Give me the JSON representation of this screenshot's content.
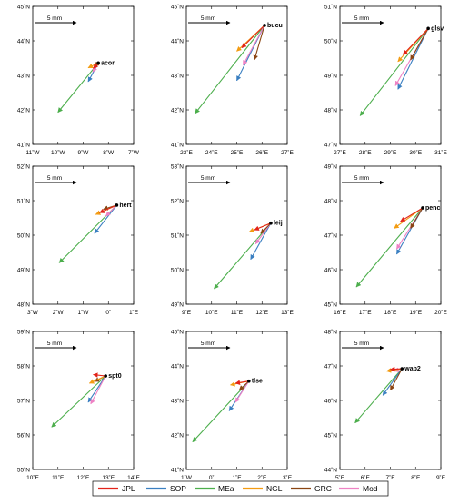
{
  "legend": [
    {
      "name": "JPL",
      "color": "#e2231a"
    },
    {
      "name": "SOP",
      "color": "#3a7fc1"
    },
    {
      "name": "MEa",
      "color": "#4cae4c"
    },
    {
      "name": "NGL",
      "color": "#f39c12"
    },
    {
      "name": "GRC",
      "color": "#8b4513"
    },
    {
      "name": "Mod",
      "color": "#ee82c4"
    }
  ],
  "chart_data": [
    {
      "type": "vector",
      "station": "acor",
      "scale_label": "5 mm",
      "x_ticks": [
        "11˚W",
        "10˚W",
        "9˚W",
        "8˚W",
        "7˚W"
      ],
      "y_ticks": [
        "41˚N",
        "42˚N",
        "43˚N",
        "44˚N",
        "45˚N"
      ],
      "xlim": [
        -11,
        -7
      ],
      "ylim": [
        41,
        45
      ],
      "origin": [
        -8.4,
        43.36
      ],
      "vectors": [
        {
          "series": "MEa",
          "lon": -10.0,
          "lat": 41.93
        },
        {
          "series": "SOP",
          "lon": -8.8,
          "lat": 42.82
        },
        {
          "series": "JPL",
          "lon": -8.6,
          "lat": 43.2
        },
        {
          "series": "NGL",
          "lon": -8.8,
          "lat": 43.22
        },
        {
          "series": "GRC",
          "lon": -8.55,
          "lat": 43.26
        },
        {
          "series": "Mod",
          "lon": -8.62,
          "lat": 43.1
        }
      ]
    },
    {
      "type": "vector",
      "station": "bucu",
      "scale_label": "5 mm",
      "x_ticks": [
        "23˚E",
        "24˚E",
        "25˚E",
        "26˚E",
        "27˚E"
      ],
      "y_ticks": [
        "41˚N",
        "42˚N",
        "43˚N",
        "44˚N",
        "45˚N"
      ],
      "xlim": [
        23,
        27
      ],
      "ylim": [
        41,
        45
      ],
      "origin": [
        26.1,
        44.45
      ],
      "vectors": [
        {
          "series": "MEa",
          "lon": 23.35,
          "lat": 41.9
        },
        {
          "series": "SOP",
          "lon": 25.0,
          "lat": 42.85
        },
        {
          "series": "JPL",
          "lon": 25.2,
          "lat": 43.8
        },
        {
          "series": "NGL",
          "lon": 25.0,
          "lat": 43.7
        },
        {
          "series": "GRC",
          "lon": 25.7,
          "lat": 43.45
        },
        {
          "series": "Mod",
          "lon": 25.25,
          "lat": 43.3
        }
      ]
    },
    {
      "type": "vector",
      "station": "glsv",
      "scale_label": "5 mm",
      "x_ticks": [
        "27˚E",
        "28˚E",
        "29˚E",
        "30˚E",
        "31˚E"
      ],
      "y_ticks": [
        "47˚N",
        "48˚N",
        "49˚N",
        "50˚N",
        "51˚N"
      ],
      "xlim": [
        27,
        31
      ],
      "ylim": [
        47,
        51
      ],
      "origin": [
        30.5,
        50.36
      ],
      "vectors": [
        {
          "series": "MEa",
          "lon": 27.8,
          "lat": 47.83
        },
        {
          "series": "SOP",
          "lon": 29.3,
          "lat": 48.6
        },
        {
          "series": "JPL",
          "lon": 29.5,
          "lat": 49.6
        },
        {
          "series": "NGL",
          "lon": 29.3,
          "lat": 49.4
        },
        {
          "series": "GRC",
          "lon": 29.8,
          "lat": 49.45
        },
        {
          "series": "Mod",
          "lon": 29.2,
          "lat": 48.7
        }
      ]
    },
    {
      "type": "vector",
      "station": "hert",
      "scale_label": "5 mm",
      "x_ticks": [
        "3˚W",
        "2˚W",
        "1˚W",
        "0˚",
        "1˚E"
      ],
      "y_ticks": [
        "48˚N",
        "49˚N",
        "50˚N",
        "51˚N",
        "52˚N"
      ],
      "xlim": [
        -3,
        1
      ],
      "ylim": [
        48,
        52
      ],
      "origin": [
        0.33,
        50.87
      ],
      "vectors": [
        {
          "series": "MEa",
          "lon": -1.95,
          "lat": 49.2
        },
        {
          "series": "SOP",
          "lon": -0.55,
          "lat": 50.05
        },
        {
          "series": "JPL",
          "lon": -0.35,
          "lat": 50.65
        },
        {
          "series": "NGL",
          "lon": -0.5,
          "lat": 50.6
        },
        {
          "series": "GRC",
          "lon": -0.2,
          "lat": 50.75
        },
        {
          "series": "Mod",
          "lon": -0.1,
          "lat": 50.55
        }
      ]
    },
    {
      "type": "vector",
      "station": "leij",
      "scale_label": "5 mm",
      "x_ticks": [
        "9˚E",
        "10˚E",
        "11˚E",
        "12˚E",
        "13˚E"
      ],
      "y_ticks": [
        "49˚N",
        "50˚N",
        "51˚N",
        "52˚N",
        "53˚N"
      ],
      "xlim": [
        9,
        13
      ],
      "ylim": [
        49,
        53
      ],
      "origin": [
        12.35,
        51.35
      ],
      "vectors": [
        {
          "series": "MEa",
          "lon": 10.1,
          "lat": 49.45
        },
        {
          "series": "SOP",
          "lon": 11.55,
          "lat": 50.3
        },
        {
          "series": "JPL",
          "lon": 11.7,
          "lat": 51.15
        },
        {
          "series": "NGL",
          "lon": 11.5,
          "lat": 51.1
        },
        {
          "series": "GRC",
          "lon": 11.95,
          "lat": 51.05
        },
        {
          "series": "Mod",
          "lon": 11.75,
          "lat": 50.75
        }
      ]
    },
    {
      "type": "vector",
      "station": "penc",
      "scale_label": "5 mm",
      "x_ticks": [
        "16˚E",
        "17˚E",
        "18˚E",
        "19˚E",
        "20˚E"
      ],
      "y_ticks": [
        "45˚N",
        "46˚N",
        "47˚N",
        "48˚N",
        "49˚N"
      ],
      "xlim": [
        16,
        20
      ],
      "ylim": [
        45,
        49
      ],
      "origin": [
        19.28,
        47.79
      ],
      "vectors": [
        {
          "series": "MEa",
          "lon": 16.65,
          "lat": 45.5
        },
        {
          "series": "SOP",
          "lon": 18.25,
          "lat": 46.45
        },
        {
          "series": "JPL",
          "lon": 18.4,
          "lat": 47.4
        },
        {
          "series": "NGL",
          "lon": 18.15,
          "lat": 47.2
        },
        {
          "series": "GRC",
          "lon": 18.8,
          "lat": 47.2
        },
        {
          "series": "Mod",
          "lon": 18.25,
          "lat": 46.6
        }
      ]
    },
    {
      "type": "vector",
      "station": "spt0",
      "scale_label": "5 mm",
      "x_ticks": [
        "10˚E",
        "11˚E",
        "12˚E",
        "13˚E",
        "14˚E"
      ],
      "y_ticks": [
        "55˚N",
        "56˚N",
        "57˚N",
        "58˚N",
        "59˚N"
      ],
      "xlim": [
        10,
        14
      ],
      "ylim": [
        55,
        59
      ],
      "origin": [
        12.89,
        57.71
      ],
      "vectors": [
        {
          "series": "MEa",
          "lon": 10.75,
          "lat": 56.23
        },
        {
          "series": "SOP",
          "lon": 12.2,
          "lat": 56.95
        },
        {
          "series": "JPL",
          "lon": 12.4,
          "lat": 57.75
        },
        {
          "series": "NGL",
          "lon": 12.25,
          "lat": 57.5
        },
        {
          "series": "GRC",
          "lon": 12.45,
          "lat": 57.55
        },
        {
          "series": "Mod",
          "lon": 12.3,
          "lat": 56.9
        }
      ]
    },
    {
      "type": "vector",
      "station": "tlse",
      "scale_label": "5 mm",
      "x_ticks": [
        "1˚W",
        "0˚",
        "1˚E",
        "2˚E",
        "3˚E"
      ],
      "y_ticks": [
        "41˚N",
        "42˚N",
        "43˚N",
        "44˚N",
        "45˚N"
      ],
      "xlim": [
        -1,
        3
      ],
      "ylim": [
        41,
        45
      ],
      "origin": [
        1.48,
        43.56
      ],
      "vectors": [
        {
          "series": "MEa",
          "lon": -0.75,
          "lat": 41.8
        },
        {
          "series": "SOP",
          "lon": 0.7,
          "lat": 42.7
        },
        {
          "series": "JPL",
          "lon": 0.95,
          "lat": 43.5
        },
        {
          "series": "NGL",
          "lon": 0.75,
          "lat": 43.45
        },
        {
          "series": "GRC",
          "lon": 1.1,
          "lat": 43.3
        },
        {
          "series": "Mod",
          "lon": 0.95,
          "lat": 42.95
        }
      ]
    },
    {
      "type": "vector",
      "station": "wab2",
      "scale_label": "5 mm",
      "x_ticks": [
        "5˚E",
        "6˚E",
        "7˚E",
        "8˚E",
        "9˚E"
      ],
      "y_ticks": [
        "44˚N",
        "45˚N",
        "46˚N",
        "47˚N",
        "48˚N"
      ],
      "xlim": [
        5,
        9
      ],
      "ylim": [
        44,
        48
      ],
      "origin": [
        7.46,
        46.92
      ],
      "vectors": [
        {
          "series": "MEa",
          "lon": 5.6,
          "lat": 45.35
        },
        {
          "series": "SOP",
          "lon": 6.7,
          "lat": 46.15
        },
        {
          "series": "JPL",
          "lon": 7.0,
          "lat": 46.9
        },
        {
          "series": "NGL",
          "lon": 6.85,
          "lat": 46.85
        },
        {
          "series": "GRC",
          "lon": 7.0,
          "lat": 46.3
        },
        {
          "series": "Mod",
          "lon": 7.15,
          "lat": 46.85
        }
      ]
    }
  ]
}
